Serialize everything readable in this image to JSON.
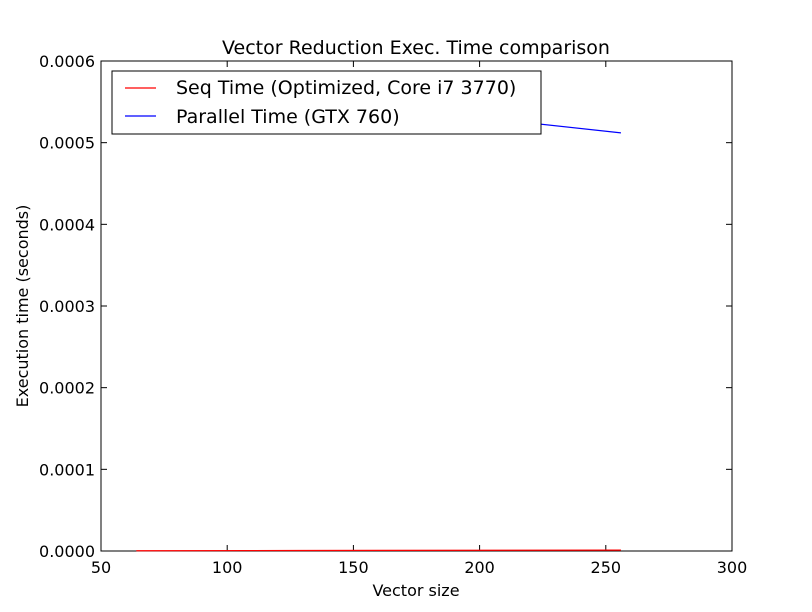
{
  "chart_data": {
    "type": "line",
    "title": "Vector Reduction Exec. Time comparison",
    "xlabel": "Vector size",
    "ylabel": "Execution time (seconds)",
    "xlim": [
      50,
      300
    ],
    "ylim": [
      0,
      0.0006
    ],
    "x_ticks": [
      "50",
      "100",
      "150",
      "200",
      "250",
      "300"
    ],
    "y_ticks": [
      "0.0000",
      "0.0001",
      "0.0002",
      "0.0003",
      "0.0004",
      "0.0005",
      "0.0006"
    ],
    "x_tick_values": [
      50,
      100,
      150,
      200,
      250,
      300
    ],
    "y_tick_values": [
      0,
      0.0001,
      0.0002,
      0.0003,
      0.0004,
      0.0005,
      0.0006
    ],
    "legend_position": "top-left",
    "grid": false,
    "series": [
      {
        "name": "Seq Time (Optimized, Core i7 3770)",
        "color": "#ff0000",
        "x": [
          64,
          128,
          256
        ],
        "y": [
          3e-07,
          6e-07,
          1.1e-06
        ]
      },
      {
        "name": "Parallel Time (GTX 760)",
        "color": "#0000ff",
        "x": [
          64,
          128,
          256
        ],
        "y": [
          0.000585,
          0.000555,
          0.000512
        ]
      }
    ]
  }
}
